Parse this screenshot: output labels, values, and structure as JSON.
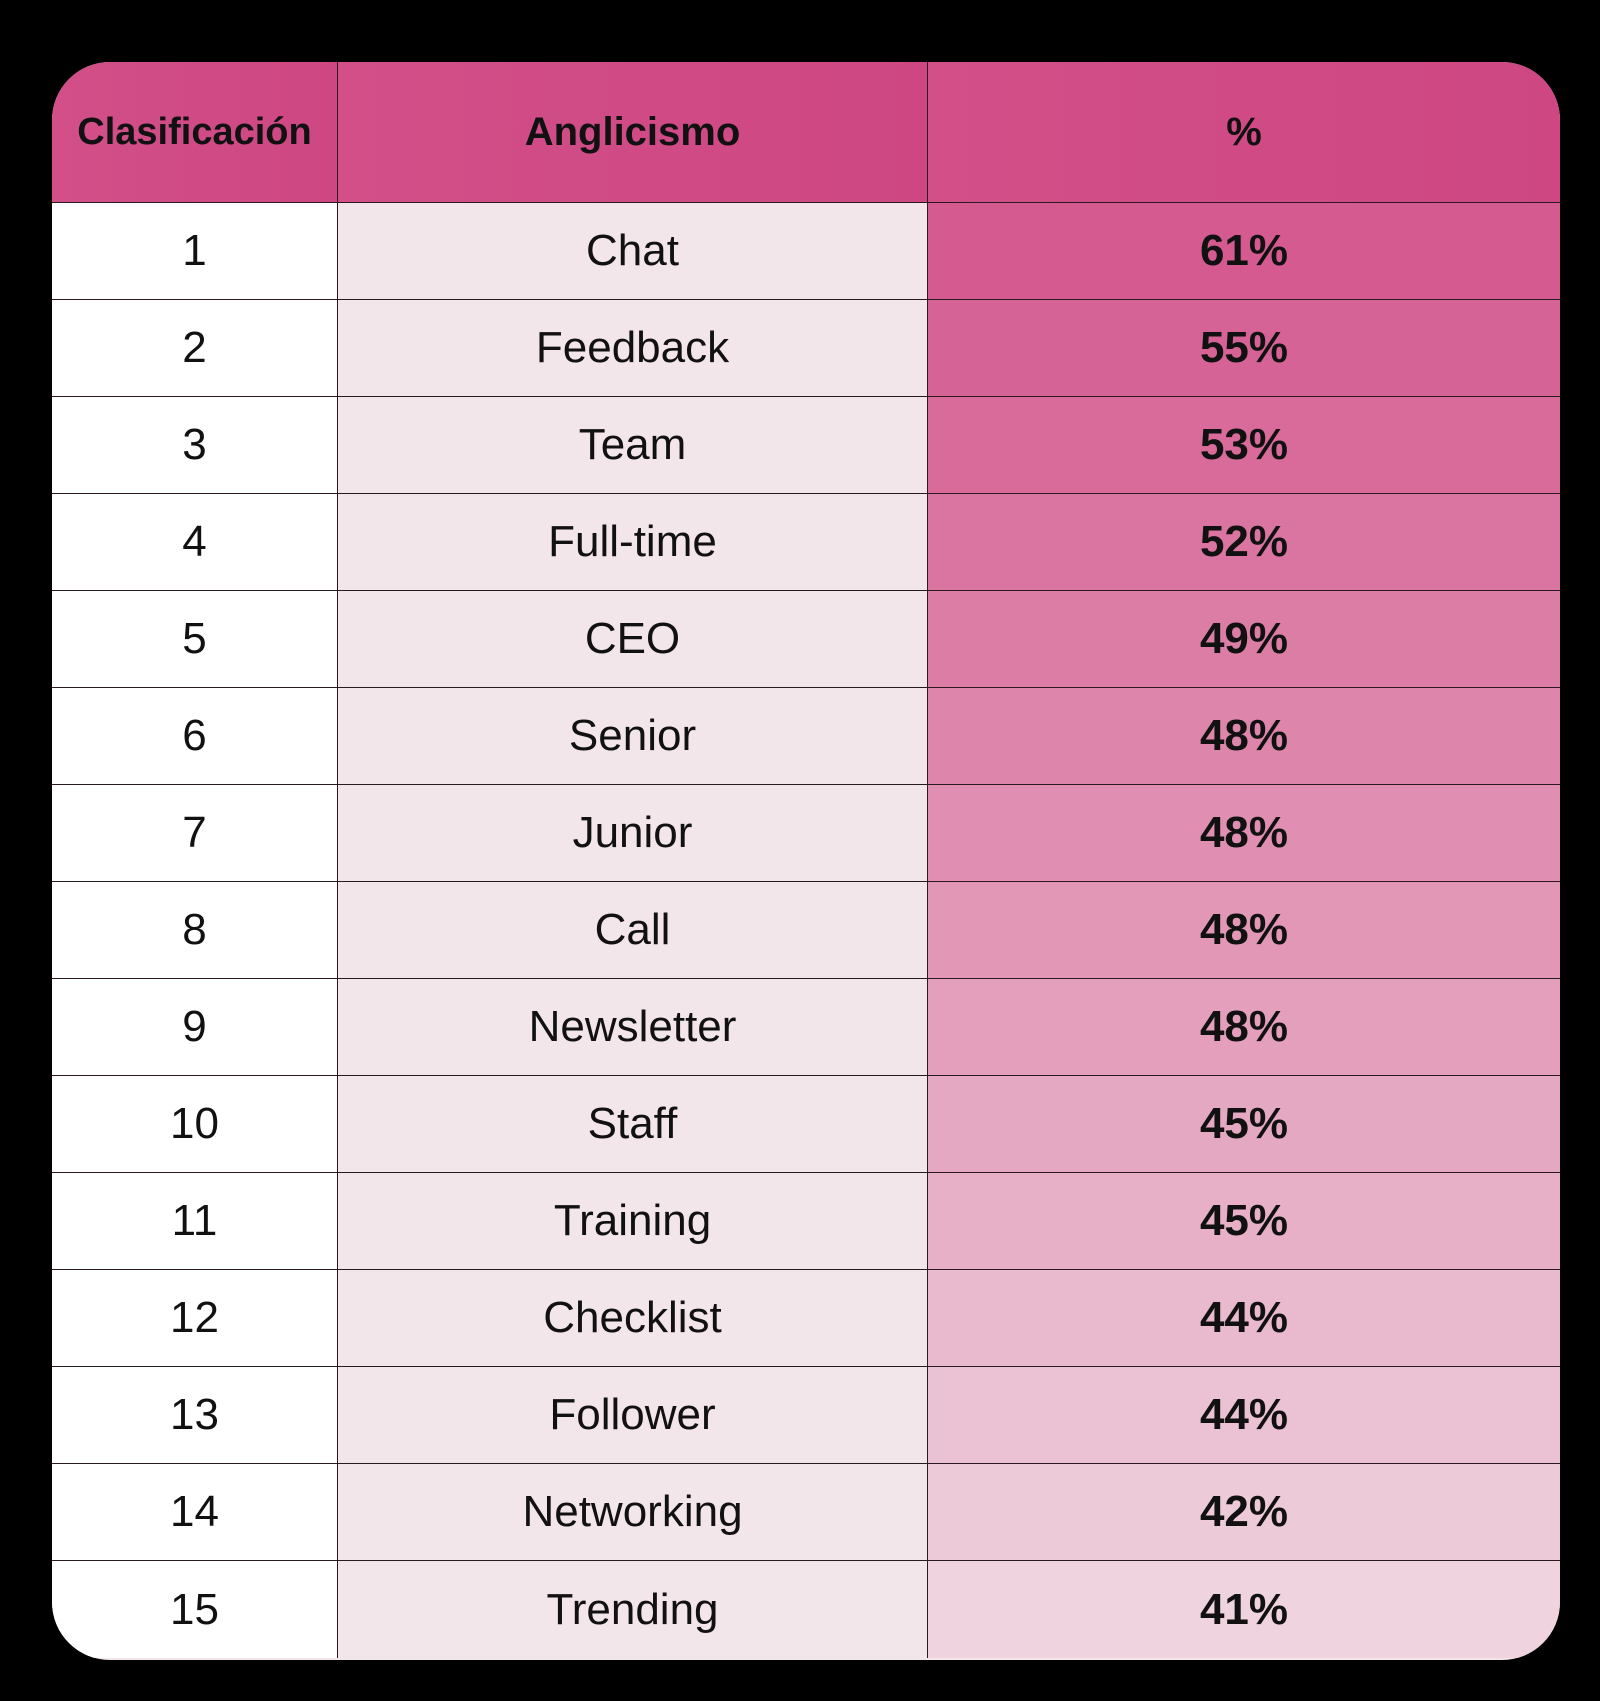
{
  "table": {
    "headers": [
      "Clasificación",
      "Anglicismo",
      "%"
    ],
    "rows": [
      {
        "rank": "1",
        "word": "Chat",
        "pct": "61%"
      },
      {
        "rank": "2",
        "word": "Feedback",
        "pct": "55%"
      },
      {
        "rank": "3",
        "word": "Team",
        "pct": "53%"
      },
      {
        "rank": "4",
        "word": "Full-time",
        "pct": "52%"
      },
      {
        "rank": "5",
        "word": "CEO",
        "pct": "49%"
      },
      {
        "rank": "6",
        "word": "Senior",
        "pct": "48%"
      },
      {
        "rank": "7",
        "word": "Junior",
        "pct": "48%"
      },
      {
        "rank": "8",
        "word": "Call",
        "pct": "48%"
      },
      {
        "rank": "9",
        "word": "Newsletter",
        "pct": "48%"
      },
      {
        "rank": "10",
        "word": "Staff",
        "pct": "45%"
      },
      {
        "rank": "11",
        "word": "Training",
        "pct": "45%"
      },
      {
        "rank": "12",
        "word": "Checklist",
        "pct": "44%"
      },
      {
        "rank": "13",
        "word": "Follower",
        "pct": "44%"
      },
      {
        "rank": "14",
        "word": "Networking",
        "pct": "42%"
      },
      {
        "rank": "15",
        "word": "Trending",
        "pct": "41%"
      }
    ]
  },
  "colors": {
    "background": "#000000",
    "header": "#d24f88",
    "pct_column_top": "#d45a8f",
    "pct_column_bottom": "#efd3de",
    "word_column": "#f3e6ea",
    "rank_column": "#ffffff"
  },
  "chart_data": {
    "type": "table",
    "columns": [
      "Clasificación",
      "Anglicismo",
      "%"
    ],
    "categories": [
      "Chat",
      "Feedback",
      "Team",
      "Full-time",
      "CEO",
      "Senior",
      "Junior",
      "Call",
      "Newsletter",
      "Staff",
      "Training",
      "Checklist",
      "Follower",
      "Networking",
      "Trending"
    ],
    "ranks": [
      1,
      2,
      3,
      4,
      5,
      6,
      7,
      8,
      9,
      10,
      11,
      12,
      13,
      14,
      15
    ],
    "values": [
      61,
      55,
      53,
      52,
      49,
      48,
      48,
      48,
      48,
      45,
      45,
      44,
      44,
      42,
      41
    ]
  }
}
